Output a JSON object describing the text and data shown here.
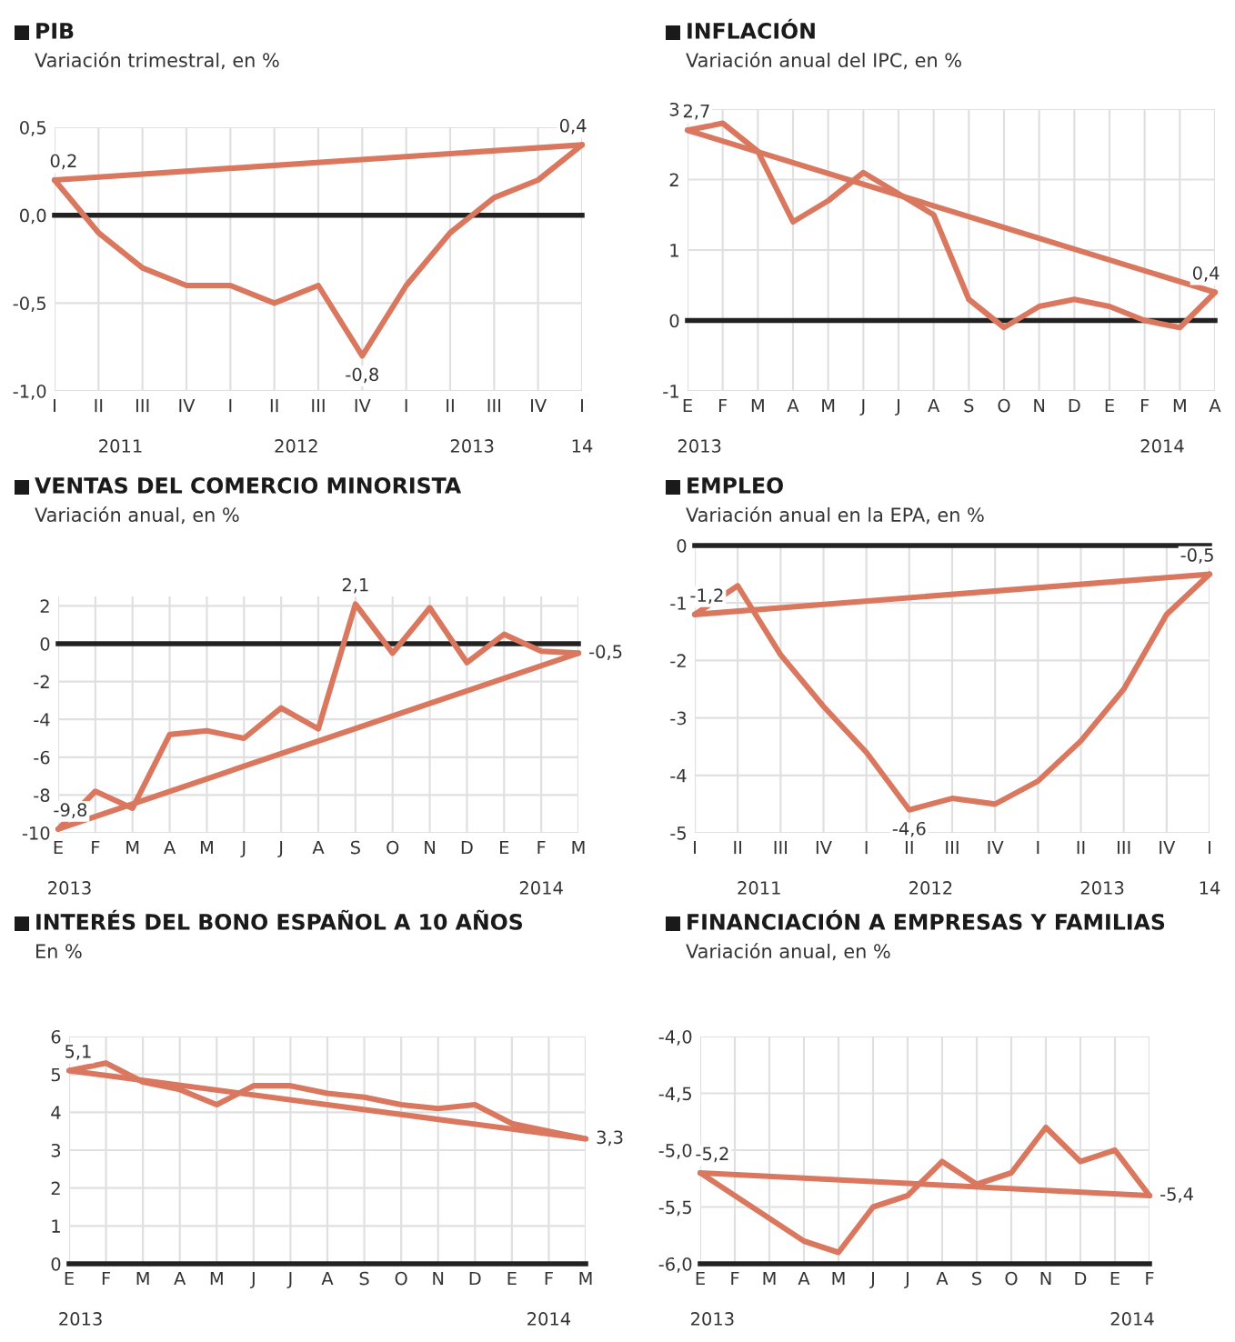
{
  "chart_data": [
    {
      "type": "line",
      "title": "PIB",
      "subtitle": "Variación trimestral, en %",
      "categories": [
        "I",
        "II",
        "III",
        "IV",
        "I",
        "II",
        "III",
        "IV",
        "I",
        "II",
        "III",
        "IV",
        "I"
      ],
      "series": [
        {
          "color": "#d9775f",
          "values": [
            0.2,
            -0.1,
            -0.3,
            -0.4,
            -0.4,
            -0.5,
            -0.4,
            -0.8,
            -0.4,
            -0.1,
            0.1,
            0.2,
            0.4
          ],
          "value_labels": [
            "0,2",
            null,
            null,
            null,
            null,
            null,
            null,
            "-0,8",
            null,
            null,
            null,
            null,
            "0,4"
          ]
        },
        {
          "color": "#d9775f",
          "values": [
            0.2,
            null,
            null,
            null,
            null,
            null,
            null,
            null,
            null,
            null,
            null,
            null,
            0.4
          ]
        }
      ],
      "ylim": [
        -1.0,
        0.5
      ],
      "yticks": [
        {
          "value": -1.0,
          "label": "-1,0"
        },
        {
          "value": -0.5,
          "label": "-0,5"
        },
        {
          "value": 0.0,
          "label": "0,0"
        },
        {
          "value": 0.5,
          "label": "0,5"
        }
      ],
      "ref_lines": [
        {
          "axis": "y",
          "value": 0,
          "color": "#222222"
        }
      ],
      "annotations": [
        "2011",
        "2012",
        "2013",
        "14"
      ],
      "grid": true
    },
    {
      "type": "line",
      "title": "INFLACIÓN",
      "subtitle": "Variación anual del IPC, en %",
      "categories": [
        "E",
        "F",
        "M",
        "A",
        "M",
        "J",
        "J",
        "A",
        "S",
        "O",
        "N",
        "D",
        "E",
        "F",
        "M",
        "A"
      ],
      "series": [
        {
          "color": "#d9775f",
          "values": [
            2.7,
            2.8,
            2.4,
            1.4,
            1.7,
            2.1,
            1.8,
            1.5,
            0.3,
            -0.1,
            0.2,
            0.3,
            0.2,
            0.0,
            -0.1,
            0.4
          ],
          "value_labels": [
            "2,7",
            null,
            null,
            null,
            null,
            null,
            null,
            null,
            null,
            null,
            null,
            null,
            null,
            null,
            null,
            "0,4"
          ]
        },
        {
          "color": "#d9775f",
          "values": [
            2.7,
            null,
            null,
            null,
            null,
            null,
            null,
            null,
            null,
            null,
            null,
            null,
            null,
            null,
            null,
            0.4
          ]
        }
      ],
      "ylim": [
        -1,
        3
      ],
      "yticks": [
        -1,
        0,
        1,
        2,
        3
      ],
      "ref_lines": [
        {
          "axis": "y",
          "value": 0,
          "color": "#222222"
        }
      ],
      "annotations": [
        "2013",
        "2014"
      ],
      "grid": true
    },
    {
      "type": "line",
      "title": "VENTAS DEL COMERCIO MINORISTA",
      "subtitle": "Variación anual, en %",
      "categories": [
        "E",
        "F",
        "M",
        "A",
        "M",
        "J",
        "J",
        "A",
        "S",
        "O",
        "N",
        "D",
        "E",
        "F",
        "M"
      ],
      "series": [
        {
          "color": "#d9775f",
          "values": [
            -9.8,
            -7.8,
            -8.7,
            -4.8,
            -4.6,
            -5.0,
            -3.4,
            -4.5,
            2.1,
            -0.5,
            1.9,
            -1.0,
            0.5,
            -0.4,
            -0.5
          ],
          "value_labels": [
            "-9,8",
            null,
            null,
            null,
            null,
            null,
            null,
            null,
            "2,1",
            null,
            null,
            null,
            null,
            null,
            "-0,5"
          ]
        },
        {
          "color": "#d9775f",
          "values": [
            -9.8,
            null,
            null,
            null,
            null,
            null,
            null,
            null,
            null,
            null,
            null,
            null,
            null,
            null,
            -0.5
          ]
        }
      ],
      "ylim": [
        -10,
        2.5
      ],
      "yticks": [
        -10,
        -8,
        -6,
        -4,
        -2,
        0,
        2
      ],
      "ref_lines": [
        {
          "axis": "y",
          "value": 0,
          "color": "#222222"
        }
      ],
      "annotations": [
        "2013",
        "2014"
      ],
      "grid": true
    },
    {
      "type": "line",
      "title": "EMPLEO",
      "subtitle": "Variación anual en la EPA, en %",
      "categories": [
        "I",
        "II",
        "III",
        "IV",
        "I",
        "II",
        "III",
        "IV",
        "I",
        "II",
        "III",
        "IV",
        "I"
      ],
      "series": [
        {
          "color": "#d9775f",
          "values": [
            -1.2,
            -0.7,
            -1.9,
            -2.8,
            -3.6,
            -4.6,
            -4.4,
            -4.5,
            -4.1,
            -3.4,
            -2.5,
            -1.2,
            -0.5
          ],
          "value_labels": [
            "-1,2",
            null,
            null,
            null,
            null,
            "-4,6",
            null,
            null,
            null,
            null,
            null,
            null,
            "-0,5"
          ]
        },
        {
          "color": "#d9775f",
          "values": [
            -1.2,
            null,
            null,
            null,
            null,
            null,
            null,
            null,
            null,
            null,
            null,
            null,
            -0.5
          ]
        }
      ],
      "ylim": [
        -5,
        0
      ],
      "yticks": [
        -5,
        -4,
        -3,
        -2,
        -1,
        0
      ],
      "ref_lines": [
        {
          "axis": "y",
          "value": 0,
          "color": "#222222"
        }
      ],
      "annotations": [
        "2011",
        "2012",
        "2013",
        "14"
      ],
      "grid": true
    },
    {
      "type": "line",
      "title": "INTERÉS DEL BONO ESPAÑOL A 10 AÑOS",
      "subtitle": "En %",
      "categories": [
        "E",
        "F",
        "M",
        "A",
        "M",
        "J",
        "J",
        "A",
        "S",
        "O",
        "N",
        "D",
        "E",
        "F",
        "M"
      ],
      "series": [
        {
          "color": "#d9775f",
          "values": [
            5.1,
            5.3,
            4.8,
            4.6,
            4.2,
            4.7,
            4.7,
            4.5,
            4.4,
            4.2,
            4.1,
            4.2,
            3.7,
            3.5,
            3.3
          ],
          "value_labels": [
            "5,1",
            null,
            null,
            null,
            null,
            null,
            null,
            null,
            null,
            null,
            null,
            null,
            null,
            null,
            "3,3"
          ]
        },
        {
          "color": "#d9775f",
          "values": [
            5.1,
            null,
            null,
            null,
            null,
            null,
            null,
            null,
            null,
            null,
            null,
            null,
            null,
            null,
            3.3
          ]
        }
      ],
      "ylim": [
        0,
        6
      ],
      "yticks": [
        0,
        1,
        2,
        3,
        4,
        5,
        6
      ],
      "annotations": [
        "2013",
        "2014"
      ],
      "grid": true
    },
    {
      "type": "line",
      "title": "FINANCIACIÓN A EMPRESAS Y FAMILIAS",
      "subtitle": "Variación anual, en %",
      "categories": [
        "E",
        "F",
        "M",
        "A",
        "M",
        "J",
        "J",
        "A",
        "S",
        "O",
        "N",
        "D",
        "E",
        "F"
      ],
      "series": [
        {
          "color": "#d9775f",
          "values": [
            -5.2,
            -5.4,
            -5.6,
            -5.8,
            -5.9,
            -5.5,
            -5.4,
            -5.1,
            -5.3,
            -5.2,
            -4.8,
            -5.1,
            -5.0,
            -5.4
          ],
          "value_labels": [
            "-5,2",
            null,
            null,
            null,
            null,
            null,
            null,
            null,
            null,
            null,
            null,
            null,
            null,
            "-5,4"
          ]
        },
        {
          "color": "#d9775f",
          "values": [
            -5.2,
            null,
            null,
            null,
            null,
            null,
            null,
            null,
            null,
            null,
            null,
            null,
            null,
            -5.4
          ]
        }
      ],
      "ylim": [
        -6.0,
        -4.0
      ],
      "yticks": [
        {
          "value": -6.0,
          "label": "-6,0"
        },
        {
          "value": -5.5,
          "label": "-5,5"
        },
        {
          "value": -5.0,
          "label": "-5,0"
        },
        {
          "value": -4.5,
          "label": "-4,5"
        },
        {
          "value": -4.0,
          "label": "-4,0"
        }
      ],
      "annotations": [
        "2013",
        "2014"
      ],
      "grid": true
    }
  ]
}
